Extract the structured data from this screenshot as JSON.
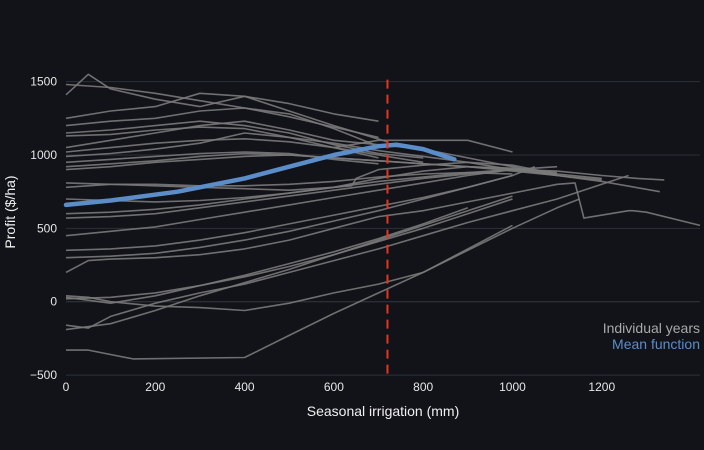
{
  "chart_data": {
    "type": "line",
    "title": "",
    "xlabel": "Seasonal irrigation (mm)",
    "ylabel": "Profit ($/ha)",
    "xlim": [
      0,
      1420
    ],
    "ylim": [
      -520,
      1620
    ],
    "x_ticks": [
      0,
      200,
      400,
      600,
      800,
      1000,
      1200
    ],
    "y_ticks": [
      -500,
      0,
      500,
      1000,
      1500
    ],
    "x_tick_labels": [
      "0",
      "200",
      "400",
      "600",
      "800",
      "1000",
      "1200"
    ],
    "y_tick_labels": [
      "−500",
      "0",
      "500",
      "1000",
      "1500"
    ],
    "grid": {
      "x": false,
      "y": true
    },
    "legend": {
      "position": "bottom-right"
    },
    "threshold_x": 720,
    "colors": {
      "background": "#111319",
      "grid": "#2c3038",
      "individual": "#7a7a7a",
      "mean": "#5b8dc9",
      "threshold": "#e8331d",
      "individual_legend": "#a9a9a9",
      "mean_legend": "#5b8dc9",
      "text": "#e6e6e6"
    },
    "series": [
      {
        "name": "Individual years",
        "group": "individual",
        "x": [
          0,
          50,
          100,
          200,
          300,
          400,
          500,
          600,
          700
        ],
        "y": [
          1410,
          1550,
          1450,
          1380,
          1330,
          1400,
          1350,
          1280,
          1230
        ]
      },
      {
        "name": "",
        "group": "individual",
        "x": [
          0,
          100,
          200,
          300,
          400,
          500,
          600,
          700
        ],
        "y": [
          1480,
          1460,
          1420,
          1370,
          1320,
          1260,
          1190,
          1120
        ]
      },
      {
        "name": "",
        "group": "individual",
        "x": [
          0,
          100,
          200,
          300,
          400,
          500,
          600,
          720
        ],
        "y": [
          1250,
          1300,
          1330,
          1420,
          1400,
          1300,
          1200,
          1090
        ]
      },
      {
        "name": "",
        "group": "individual",
        "x": [
          0,
          100,
          200,
          300,
          400,
          500,
          600,
          700
        ],
        "y": [
          1200,
          1230,
          1250,
          1300,
          1320,
          1280,
          1180,
          1060
        ]
      },
      {
        "name": "",
        "group": "individual",
        "x": [
          0,
          100,
          200,
          300,
          400,
          500,
          600,
          700,
          800
        ],
        "y": [
          1150,
          1170,
          1200,
          1230,
          1200,
          1150,
          1070,
          1010,
          980
        ]
      },
      {
        "name": "",
        "group": "individual",
        "x": [
          0,
          100,
          200,
          300,
          400,
          500,
          600,
          700
        ],
        "y": [
          1130,
          1140,
          1170,
          1190,
          1180,
          1120,
          1050,
          980
        ]
      },
      {
        "name": "",
        "group": "individual",
        "x": [
          0,
          100,
          200,
          300,
          400,
          500,
          600,
          700,
          800,
          900,
          1000,
          1100
        ],
        "y": [
          1050,
          1100,
          1150,
          1200,
          1230,
          1170,
          1100,
          1070,
          1040,
          980,
          920,
          860
        ]
      },
      {
        "name": "",
        "group": "individual",
        "x": [
          0,
          100,
          200,
          300,
          400,
          500,
          600,
          700,
          800
        ],
        "y": [
          1020,
          1050,
          1080,
          1100,
          1110,
          1090,
          1050,
          1000,
          950
        ]
      },
      {
        "name": "",
        "group": "individual",
        "x": [
          0,
          100,
          200,
          300,
          400,
          500,
          600,
          700,
          800,
          900,
          1000,
          1100,
          1200
        ],
        "y": [
          990,
          1010,
          1040,
          1080,
          1150,
          1120,
          1080,
          1030,
          990,
          950,
          900,
          870,
          840
        ]
      },
      {
        "name": "",
        "group": "individual",
        "x": [
          0,
          100,
          200,
          300,
          400,
          500,
          600,
          700
        ],
        "y": [
          950,
          970,
          990,
          1010,
          1020,
          1010,
          970,
          940
        ]
      },
      {
        "name": "",
        "group": "individual",
        "x": [
          0,
          100,
          200,
          300,
          400,
          500,
          600,
          700,
          800,
          900,
          1000,
          1100,
          1200
        ],
        "y": [
          920,
          940,
          960,
          990,
          1010,
          1000,
          980,
          960,
          940,
          920,
          890,
          860,
          830
        ]
      },
      {
        "name": "",
        "group": "individual",
        "x": [
          0,
          100,
          200,
          300,
          400,
          500,
          600,
          700,
          800,
          900,
          1000,
          1100,
          1200,
          1330
        ],
        "y": [
          900,
          920,
          950,
          970,
          990,
          1000,
          980,
          960,
          940,
          920,
          900,
          860,
          820,
          750
        ]
      },
      {
        "name": "",
        "group": "individual",
        "x": [
          600,
          700,
          800,
          900,
          1000
        ],
        "y": [
          1050,
          1100,
          1100,
          1100,
          1020
        ]
      },
      {
        "name": "",
        "group": "individual",
        "x": [
          0,
          100,
          200,
          300,
          400,
          500,
          600,
          640,
          650,
          700,
          800,
          900,
          1000,
          1100
        ],
        "y": [
          810,
          800,
          790,
          780,
          770,
          760,
          780,
          790,
          840,
          900,
          930,
          950,
          930,
          870
        ]
      },
      {
        "name": "",
        "group": "individual",
        "x": [
          0,
          100,
          200,
          300,
          400,
          500,
          600,
          700,
          800,
          900,
          1000
        ],
        "y": [
          780,
          800,
          800,
          790,
          790,
          800,
          820,
          850,
          870,
          880,
          870
        ]
      },
      {
        "name": "",
        "group": "individual",
        "x": [
          0,
          100,
          200,
          300,
          400,
          500,
          600,
          700,
          800,
          900,
          1000,
          1100,
          1200,
          1280,
          1340
        ],
        "y": [
          600,
          610,
          630,
          660,
          700,
          740,
          780,
          820,
          850,
          880,
          900,
          890,
          860,
          840,
          830
        ]
      },
      {
        "name": "",
        "group": "individual",
        "x": [
          0,
          100,
          200,
          300,
          400,
          500,
          600,
          700,
          800,
          900,
          1000,
          1100
        ],
        "y": [
          570,
          580,
          600,
          640,
          680,
          720,
          760,
          800,
          840,
          870,
          900,
          920
        ]
      },
      {
        "name": "",
        "group": "individual",
        "x": [
          0,
          100,
          200,
          300,
          400,
          500,
          600,
          700,
          800,
          900,
          1000
        ],
        "y": [
          450,
          480,
          510,
          560,
          610,
          660,
          710,
          760,
          810,
          860,
          900
        ]
      },
      {
        "name": "",
        "group": "individual",
        "x": [
          0,
          100,
          200,
          300,
          400,
          500,
          600,
          700,
          800,
          900,
          1000,
          1050
        ],
        "y": [
          350,
          360,
          380,
          420,
          470,
          530,
          590,
          650,
          710,
          780,
          860,
          920
        ]
      },
      {
        "name": "",
        "group": "individual",
        "x": [
          0,
          100,
          200,
          300,
          400,
          500,
          600,
          700,
          800,
          900,
          1000
        ],
        "y": [
          300,
          310,
          330,
          370,
          420,
          480,
          550,
          620,
          700,
          780,
          860
        ]
      },
      {
        "name": "",
        "group": "individual",
        "x": [
          0,
          50,
          100,
          200,
          300,
          400,
          500,
          600,
          700,
          800,
          900,
          1000,
          1100,
          1140,
          1160,
          1260,
          1270,
          1300,
          1420
        ],
        "y": [
          200,
          280,
          290,
          300,
          320,
          360,
          420,
          500,
          580,
          620,
          680,
          740,
          800,
          810,
          570,
          620,
          620,
          610,
          520
        ]
      },
      {
        "name": "",
        "group": "individual",
        "x": [
          0,
          100,
          200,
          300,
          400,
          500,
          600,
          700,
          800,
          900,
          1000
        ],
        "y": [
          20,
          30,
          60,
          110,
          170,
          240,
          320,
          410,
          500,
          600,
          700
        ]
      },
      {
        "name": "",
        "group": "individual",
        "x": [
          0,
          100,
          200,
          300,
          400,
          500,
          600,
          700,
          800,
          900
        ],
        "y": [
          30,
          -10,
          40,
          110,
          180,
          260,
          340,
          430,
          530,
          640
        ]
      },
      {
        "name": "",
        "group": "individual",
        "x": [
          0,
          50,
          100,
          200,
          300,
          400,
          500,
          600,
          700,
          800,
          900,
          1000,
          1100,
          1200,
          1260
        ],
        "y": [
          -160,
          -180,
          -100,
          -10,
          60,
          120,
          200,
          280,
          360,
          450,
          540,
          620,
          700,
          800,
          860
        ]
      },
      {
        "name": "",
        "group": "individual",
        "x": [
          0,
          100,
          200,
          300,
          400,
          500,
          600,
          700,
          800,
          900,
          1000
        ],
        "y": [
          -190,
          -150,
          -60,
          40,
          130,
          220,
          320,
          420,
          520,
          620,
          720
        ]
      },
      {
        "name": "",
        "group": "individual",
        "x": [
          0,
          50,
          150,
          400,
          500,
          600,
          700,
          800,
          900,
          1000
        ],
        "y": [
          -330,
          -330,
          -390,
          -380,
          -230,
          -80,
          60,
          200,
          360,
          520
        ]
      },
      {
        "name": "",
        "group": "individual",
        "x": [
          0,
          50,
          100,
          200,
          300,
          400,
          500,
          600,
          700,
          800,
          900,
          1000,
          1100,
          1150
        ],
        "y": [
          40,
          30,
          0,
          -30,
          -40,
          -60,
          -10,
          60,
          120,
          200,
          350,
          500,
          640,
          700
        ]
      },
      {
        "name": "",
        "group": "individual",
        "x": [
          0,
          100,
          200,
          300,
          400,
          500,
          600,
          700,
          800,
          900,
          1000,
          1100
        ],
        "y": [
          700,
          690,
          680,
          690,
          710,
          740,
          780,
          840,
          890,
          920,
          910,
          880
        ]
      },
      {
        "name": "Mean function",
        "group": "mean",
        "x": [
          0,
          100,
          250,
          400,
          500,
          600,
          700,
          740,
          800,
          870
        ],
        "y": [
          660,
          690,
          750,
          840,
          920,
          1000,
          1060,
          1070,
          1040,
          970
        ]
      }
    ],
    "legend_entries": [
      {
        "label": "Individual years",
        "color": "#a9a9a9"
      },
      {
        "label": "Mean function",
        "color": "#5b8dc9"
      }
    ]
  }
}
